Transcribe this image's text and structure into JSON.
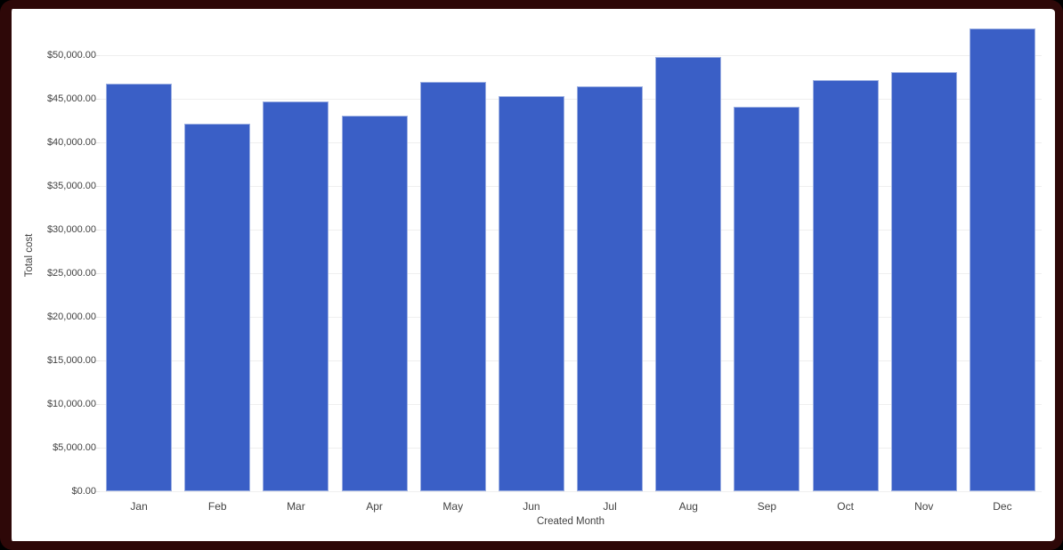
{
  "frame": {
    "border_color": "#2e0808",
    "outer_background": "#000000",
    "canvas_background": "#ffffff"
  },
  "chart_data": {
    "type": "bar",
    "title": "",
    "xlabel": "Created Month",
    "ylabel": "Total cost",
    "categories": [
      "Jan",
      "Feb",
      "Mar",
      "Apr",
      "May",
      "Jun",
      "Jul",
      "Aug",
      "Sep",
      "Oct",
      "Nov",
      "Dec"
    ],
    "series": [
      {
        "name": "Total cost",
        "values": [
          46700,
          42100,
          44700,
          43100,
          46900,
          45300,
          46400,
          49800,
          44100,
          47100,
          48100,
          53100
        ]
      }
    ],
    "ylim": [
      0,
      55100
    ],
    "y_ticks": [
      {
        "value": 0,
        "label": "$0.00"
      },
      {
        "value": 5000,
        "label": "$5,000.00"
      },
      {
        "value": 10000,
        "label": "$10,000.00"
      },
      {
        "value": 15000,
        "label": "$15,000.00"
      },
      {
        "value": 20000,
        "label": "$20,000.00"
      },
      {
        "value": 25000,
        "label": "$25,000.00"
      },
      {
        "value": 30000,
        "label": "$30,000.00"
      },
      {
        "value": 35000,
        "label": "$35,000.00"
      },
      {
        "value": 40000,
        "label": "$40,000.00"
      },
      {
        "value": 45000,
        "label": "$45,000.00"
      },
      {
        "value": 50000,
        "label": "$50,000.00"
      }
    ],
    "grid": true,
    "legend": "none",
    "colors": {
      "bar_fill": "#3A5FC6",
      "bar_stroke": "#9DB0E2",
      "gridline": "#EFEFEF",
      "tick_text": "#424242",
      "axis_title_text": "#424242"
    }
  }
}
